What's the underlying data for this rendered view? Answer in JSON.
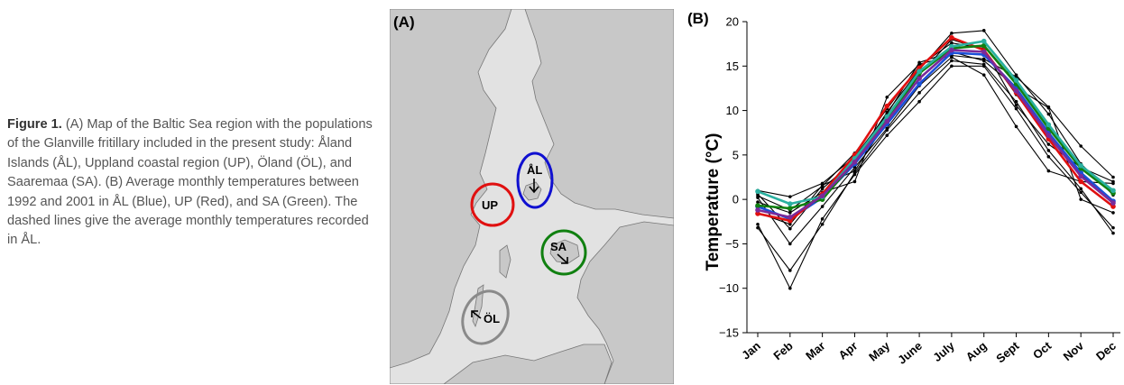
{
  "caption": {
    "label": "Figure 1.",
    "text": "(A) Map of the Baltic Sea region with the populations of the Glanville fritillary included in the present study: Åland Islands (ÅL), Uppland coastal region (UP), Öland (ÖL), and Saaremaa (SA). (B) Average monthly temperatures between 1992 and 2001 in ÅL (Blue), UP (Red), and SA (Green). The dashed lines give the average monthly temperatures recorded in ÅL."
  },
  "map": {
    "panel_label": "(A)",
    "regions": [
      {
        "code": "ÅL",
        "color": "#1010d0"
      },
      {
        "code": "UP",
        "color": "#e01010"
      },
      {
        "code": "SA",
        "color": "#108010"
      },
      {
        "code": "ÖL",
        "color": "#8a8a8a"
      }
    ],
    "colors": {
      "sea": "#e2e2e2",
      "land": "#c8c8c8",
      "coast": "#777777"
    }
  },
  "chart_data": {
    "type": "line",
    "panel_label": "(B)",
    "ylabel": "Temperature (°C)",
    "xlabel": "",
    "categories": [
      "Jan",
      "Feb",
      "Mar",
      "Apr",
      "May",
      "June",
      "July",
      "Aug",
      "Sept",
      "Oct",
      "Nov",
      "Dec"
    ],
    "ylim": [
      -15,
      20
    ],
    "yticks": [
      -15,
      -10,
      -5,
      0,
      5,
      10,
      15,
      20
    ],
    "series": [
      {
        "color": "#1a4fd8",
        "values": [
          -0.8,
          -2.2,
          0.2,
          4.0,
          8.5,
          13.0,
          16.5,
          16.3,
          12.5,
          7.5,
          3.0,
          -0.2
        ]
      },
      {
        "color": "#e01010",
        "values": [
          -1.6,
          -2.4,
          0.6,
          5.0,
          10.5,
          14.8,
          18.2,
          16.8,
          12.0,
          6.8,
          2.0,
          -0.8
        ]
      },
      {
        "color": "#108010",
        "values": [
          -0.7,
          -1.0,
          0.0,
          4.3,
          9.0,
          14.2,
          17.0,
          17.3,
          13.0,
          8.0,
          3.5,
          0.7
        ]
      },
      {
        "color": "#2ab0a0",
        "values": [
          0.9,
          -0.5,
          0.3,
          4.6,
          9.3,
          14.4,
          17.2,
          17.8,
          13.4,
          8.4,
          3.8,
          1.0
        ]
      },
      {
        "color": "#7a2a9a",
        "values": [
          -1.2,
          -2.0,
          0.4,
          4.2,
          8.8,
          13.6,
          16.8,
          16.6,
          12.2,
          7.2,
          2.6,
          -0.4
        ]
      },
      {
        "color": "#000000",
        "values": [
          -3.2,
          -8.0,
          -2.8,
          3.0,
          7.8,
          12.0,
          15.6,
          15.2,
          11.0,
          5.5,
          1.2,
          -3.8
        ]
      },
      {
        "color": "#000000",
        "values": [
          -2.8,
          -10.0,
          -2.2,
          2.8,
          7.2,
          11.0,
          15.0,
          15.0,
          10.2,
          4.8,
          0.8,
          -3.2
        ]
      },
      {
        "color": "#000000",
        "values": [
          0.2,
          -5.0,
          -0.8,
          3.6,
          8.0,
          12.8,
          16.0,
          14.0,
          8.2,
          3.2,
          2.0,
          1.8
        ]
      },
      {
        "color": "#000000",
        "values": [
          0.6,
          -3.3,
          1.2,
          4.4,
          9.8,
          14.6,
          18.7,
          19.0,
          14.0,
          9.6,
          4.0,
          0.5
        ]
      },
      {
        "color": "#000000",
        "values": [
          -0.3,
          -1.5,
          0.8,
          2.0,
          11.5,
          15.2,
          16.2,
          15.8,
          13.8,
          10.4,
          6.0,
          2.5
        ]
      },
      {
        "color": "#000000",
        "values": [
          1.0,
          0.3,
          1.8,
          4.8,
          9.6,
          15.4,
          16.6,
          15.6,
          12.6,
          10.3,
          0.0,
          -1.5
        ]
      },
      {
        "color": "#000000",
        "values": [
          -1.5,
          -2.8,
          1.6,
          3.2,
          8.8,
          14.0,
          18.0,
          16.8,
          11.8,
          7.0,
          2.8,
          -0.2
        ]
      },
      {
        "color": "#000000",
        "values": [
          0.4,
          -1.2,
          1.5,
          5.2,
          10.2,
          15.0,
          17.6,
          17.0,
          10.6,
          6.2,
          3.6,
          2.0
        ]
      }
    ]
  }
}
